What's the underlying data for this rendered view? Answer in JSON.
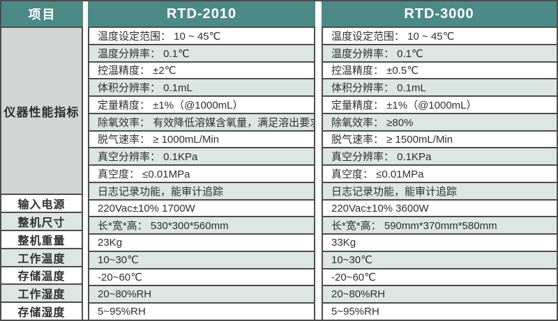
{
  "header": {
    "item_column": "项目",
    "model_a": "RTD-2010",
    "model_b": "RTD-3000"
  },
  "performance_group_label": "仪器性能指标",
  "performance_rows": [
    {
      "rtd2010": "温度设定范围： 10 ~ 45℃",
      "rtd3000": "温度设定范围： 10 ~ 45℃"
    },
    {
      "rtd2010": "温度分辨率： 0.1℃",
      "rtd3000": "温度分辨率： 0.1℃"
    },
    {
      "rtd2010": "控温精度： ±2℃",
      "rtd3000": "控温精度： ±0.5℃"
    },
    {
      "rtd2010": "体积分辨率： 0.1mL",
      "rtd3000": "体积分辨率： 0.1mL"
    },
    {
      "rtd2010": "定量精度： ±1%（@1000mL）",
      "rtd3000": "定量精度： ±1%（@1000mL）"
    },
    {
      "rtd2010": "除氧效率： 有效降低溶媒含氧量，满足溶出要求",
      "rtd3000": "除氧效率： ≥80%"
    },
    {
      "rtd2010": "脱气速率： ≥ 1000mL/Min",
      "rtd3000": "脱气速率： ≥ 1500mL/Min"
    },
    {
      "rtd2010": "真空分辨率： 0.1KPa",
      "rtd3000": "真空分辨率： 0.1KPa"
    },
    {
      "rtd2010": "真空度： ≤0.01MPa",
      "rtd3000": "真空度： ≤0.01MPa"
    },
    {
      "rtd2010": "日志记录功能，能审计追踪",
      "rtd3000": "日志记录功能，能审计追踪"
    }
  ],
  "spec_rows": [
    {
      "label": "输入电源",
      "rtd2010": "220Vac±10% 1700W",
      "rtd3000": "220Vac±10% 3600W"
    },
    {
      "label": "整机尺寸",
      "rtd2010": "长*宽*高： 530*300*560mm",
      "rtd3000": "长*宽*高： 590mm*370mm*580mm"
    },
    {
      "label": "整机重量",
      "rtd2010": "23Kg",
      "rtd3000": "33Kg"
    },
    {
      "label": "工作温度",
      "rtd2010": "10~30℃",
      "rtd3000": "10~30℃"
    },
    {
      "label": "存储温度",
      "rtd2010": "-20~60℃",
      "rtd3000": "-20~60℃"
    },
    {
      "label": "工作湿度",
      "rtd2010": "20~80%RH",
      "rtd3000": "20~80%RH"
    },
    {
      "label": "存储湿度",
      "rtd2010": "5~95%RH",
      "rtd3000": "5~95%RH"
    }
  ],
  "colors": {
    "header_teal": "#4b8a86",
    "row_alternate": "#dce6e3",
    "group_cell_gray": "#d2d5d4",
    "border": "#4c4c4c",
    "text": "#2f2f2f"
  }
}
